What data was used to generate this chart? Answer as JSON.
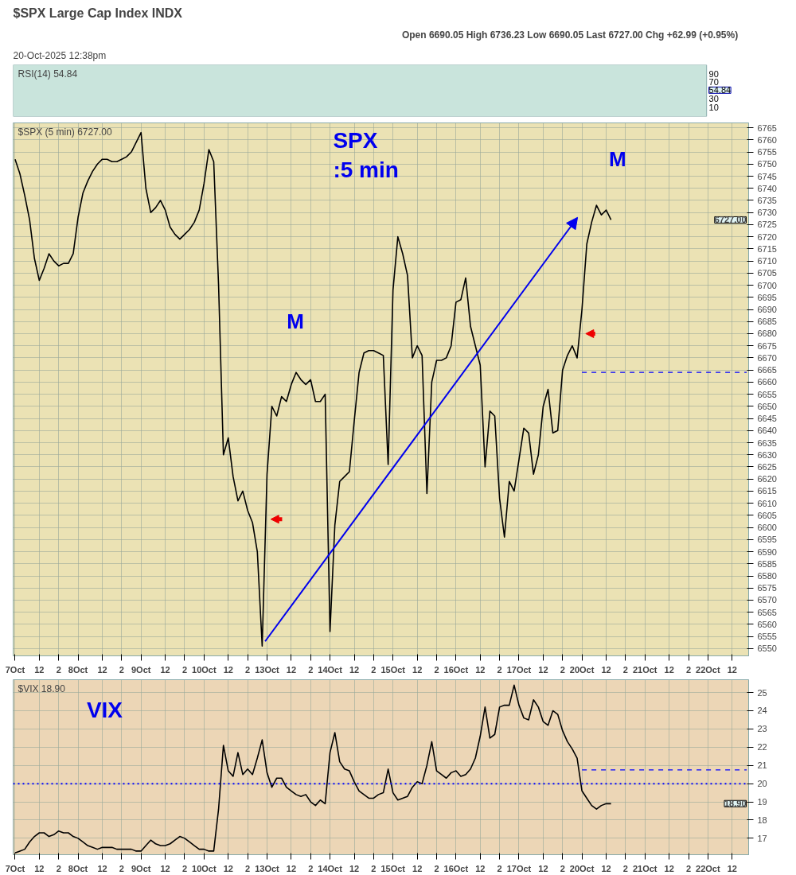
{
  "chart_data": [
    {
      "type": "other",
      "title": "$SPX Large Cap Index INDX",
      "subtitle": "20-Oct-2025 12:38pm",
      "annotations": [
        "Open 6690.05  High 6736.23  Low 6690.05  Last 6727.00  Chg +62.99 (+0.95%)",
        "RSI(14) 54.84",
        "90",
        "70",
        "54.84",
        "30",
        "10"
      ]
    },
    {
      "type": "line",
      "annotations": [
        "$SPX (5 min) 6727.00",
        "SPX",
        ":5 min",
        "M",
        "M",
        "6727.00"
      ],
      "ylim": [
        6547,
        6767
      ],
      "grid": true,
      "yticks": [
        6550,
        6555,
        6560,
        6565,
        6570,
        6575,
        6580,
        6585,
        6590,
        6595,
        6600,
        6605,
        6610,
        6615,
        6620,
        6625,
        6630,
        6635,
        6640,
        6645,
        6650,
        6655,
        6660,
        6665,
        6670,
        6675,
        6680,
        6685,
        6690,
        6695,
        6700,
        6705,
        6710,
        6715,
        6720,
        6725,
        6730,
        6735,
        6740,
        6745,
        6750,
        6755,
        6760,
        6765
      ],
      "categories": [
        "7Oct",
        null,
        null,
        null,
        null,
        "12",
        null,
        null,
        null,
        "2",
        null,
        null,
        null,
        "8Oct",
        null,
        null,
        null,
        null,
        "12",
        null,
        null,
        null,
        "2",
        null,
        null,
        null,
        "9Oct",
        null,
        null,
        null,
        null,
        "12",
        null,
        null,
        null,
        "2",
        null,
        null,
        null,
        "10Oct",
        null,
        null,
        null,
        null,
        "12",
        null,
        null,
        null,
        "2",
        null,
        null,
        null,
        "13Oct",
        null,
        null,
        null,
        null,
        "12",
        null,
        null,
        null,
        "2",
        null,
        null,
        null,
        "14Oct",
        null,
        null,
        null,
        null,
        "12",
        null,
        null,
        null,
        "2",
        null,
        null,
        null,
        "15Oct",
        null,
        null,
        null,
        null,
        "12",
        null,
        null,
        null,
        "2",
        null,
        null,
        null,
        "16Oct",
        null,
        null,
        null,
        null,
        "12",
        null,
        null,
        null,
        "2",
        null,
        null,
        null,
        "17Oct",
        null,
        null,
        null,
        null,
        "12",
        null,
        null,
        null,
        "2",
        null,
        null,
        null,
        "20Oct",
        null,
        null,
        null,
        null,
        "12",
        null,
        null,
        null,
        "2",
        null,
        null,
        null,
        "21Oct",
        null,
        null,
        null,
        null,
        "12",
        null,
        null,
        null,
        "2",
        null,
        null,
        null,
        "22Oct",
        null,
        null,
        null,
        null,
        "12",
        null,
        null,
        null
      ],
      "series": [
        {
          "color": "#000000",
          "values": [
            6752,
            6746,
            6737,
            6727,
            6711,
            6702,
            6707,
            6713,
            6710,
            6708,
            6709,
            6709,
            6713,
            6728,
            6738,
            6743,
            6747,
            6750,
            6752,
            6752,
            6751,
            6751,
            6752,
            6753,
            6755,
            6759,
            6763,
            6740,
            6730,
            6732,
            6735,
            6731,
            6724,
            6721,
            6719,
            6721,
            6723,
            6726,
            6731,
            6742,
            6756,
            6751,
            6700,
            6630,
            6637,
            6621,
            6611,
            6615,
            6607,
            6602,
            6590,
            6551,
            6622,
            6650,
            6646,
            6654,
            6652,
            6659,
            6664,
            6661,
            6659,
            6661,
            6652,
            6652,
            6655,
            6557,
            6601,
            6619,
            6621,
            6623,
            6644,
            6664,
            6672,
            6673,
            6673,
            6672,
            6671,
            6626,
            6698,
            6720,
            6713,
            6704,
            6670,
            6675,
            6671,
            6614,
            6660,
            6669,
            6669,
            6670,
            6675,
            6693,
            6694,
            6703,
            6683,
            6675,
            6667,
            6625,
            6648,
            6646,
            6612,
            6596,
            6619,
            6615,
            6628,
            6641,
            6639,
            6622,
            6630,
            6650,
            6657,
            6639,
            6640,
            6665,
            6671,
            6675,
            6670,
            6690,
            6717,
            6726,
            6733,
            6729,
            6731,
            6727,
            null,
            null,
            null,
            null,
            null,
            null,
            null,
            null,
            null,
            null,
            null,
            null,
            null,
            null,
            null,
            null,
            null,
            null,
            null,
            null,
            null,
            null,
            null,
            null,
            null,
            null,
            null,
            null
          ]
        },
        {
          "color": "#0000ff",
          "line_style": "dashed",
          "values": [
            null,
            null,
            null,
            null,
            null,
            null,
            null,
            null,
            null,
            null,
            null,
            null,
            null,
            null,
            null,
            null,
            null,
            null,
            null,
            null,
            null,
            null,
            null,
            null,
            null,
            null,
            null,
            null,
            null,
            null,
            null,
            null,
            null,
            null,
            null,
            null,
            null,
            null,
            null,
            null,
            null,
            null,
            null,
            null,
            null,
            null,
            null,
            null,
            null,
            null,
            null,
            null,
            null,
            null,
            null,
            null,
            null,
            null,
            null,
            null,
            null,
            null,
            null,
            null,
            null,
            null,
            null,
            null,
            null,
            null,
            null,
            null,
            null,
            null,
            null,
            null,
            null,
            null,
            null,
            null,
            null,
            null,
            null,
            null,
            null,
            null,
            null,
            null,
            null,
            null,
            null,
            null,
            null,
            null,
            null,
            null,
            null,
            null,
            null,
            null,
            null,
            null,
            null,
            null,
            null,
            null,
            null,
            null,
            null,
            null,
            null,
            null,
            null,
            null,
            null,
            null,
            null,
            6664,
            6664,
            6664,
            6664,
            6664,
            6664,
            6664,
            6664,
            6664,
            6664,
            6664,
            6664,
            6664,
            6664,
            6664,
            6664,
            6664,
            6664,
            6664,
            6664,
            6664,
            6664,
            6664,
            6664,
            6664,
            6664,
            6664,
            6664,
            6664,
            6664,
            6664,
            6664,
            6664,
            6664,
            6664
          ]
        }
      ]
    },
    {
      "type": "line",
      "annotations": [
        "$VIX 18.90",
        "VIX",
        "18.90"
      ],
      "ylim": [
        16.1,
        25.7
      ],
      "yticks": [
        17,
        18,
        19,
        20,
        21,
        22,
        23,
        24,
        25
      ],
      "grid": true,
      "ref_lines": [
        {
          "axis": "y",
          "value": 20,
          "color": "#0000ff",
          "line_style": "dotted"
        }
      ],
      "categories": [
        "7Oct",
        null,
        null,
        null,
        null,
        "12",
        null,
        null,
        null,
        "2",
        null,
        null,
        null,
        "8Oct",
        null,
        null,
        null,
        null,
        "12",
        null,
        null,
        null,
        "2",
        null,
        null,
        null,
        "9Oct",
        null,
        null,
        null,
        null,
        "12",
        null,
        null,
        null,
        "2",
        null,
        null,
        null,
        "10Oct",
        null,
        null,
        null,
        null,
        "12",
        null,
        null,
        null,
        "2",
        null,
        null,
        null,
        "13Oct",
        null,
        null,
        null,
        null,
        "12",
        null,
        null,
        null,
        "2",
        null,
        null,
        null,
        "14Oct",
        null,
        null,
        null,
        null,
        "12",
        null,
        null,
        null,
        "2",
        null,
        null,
        null,
        "15Oct",
        null,
        null,
        null,
        null,
        "12",
        null,
        null,
        null,
        "2",
        null,
        null,
        null,
        "16Oct",
        null,
        null,
        null,
        null,
        "12",
        null,
        null,
        null,
        "2",
        null,
        null,
        null,
        "17Oct",
        null,
        null,
        null,
        null,
        "12",
        null,
        null,
        null,
        "2",
        null,
        null,
        null,
        "20Oct",
        null,
        null,
        null,
        null,
        "12",
        null,
        null,
        null,
        "2",
        null,
        null,
        null,
        "21Oct",
        null,
        null,
        null,
        null,
        "12",
        null,
        null,
        null,
        "2",
        null,
        null,
        null,
        "22Oct",
        null,
        null,
        null,
        null,
        "12",
        null,
        null,
        null
      ],
      "series": [
        {
          "color": "#000000",
          "values": [
            16.2,
            16.3,
            16.4,
            16.8,
            17.1,
            17.3,
            17.3,
            17.1,
            17.2,
            17.4,
            17.3,
            17.3,
            17.1,
            17.0,
            16.8,
            16.6,
            16.5,
            16.4,
            16.5,
            16.5,
            16.5,
            16.4,
            16.4,
            16.4,
            16.4,
            16.3,
            16.3,
            16.6,
            16.9,
            16.7,
            16.6,
            16.6,
            16.7,
            16.9,
            17.1,
            17.0,
            16.8,
            16.6,
            16.4,
            16.4,
            16.3,
            16.3,
            18.6,
            22.1,
            20.7,
            20.4,
            21.7,
            20.5,
            20.8,
            20.5,
            21.4,
            22.4,
            20.6,
            19.8,
            20.3,
            20.3,
            19.8,
            19.6,
            19.4,
            19.3,
            19.4,
            19.0,
            18.8,
            19.1,
            18.9,
            21.7,
            22.8,
            21.2,
            20.8,
            20.7,
            20.1,
            19.6,
            19.4,
            19.2,
            19.2,
            19.4,
            19.5,
            20.8,
            19.5,
            19.1,
            19.2,
            19.3,
            19.8,
            20.1,
            20.0,
            21.0,
            22.3,
            20.7,
            20.5,
            20.3,
            20.6,
            20.7,
            20.4,
            20.5,
            20.8,
            21.4,
            22.6,
            24.2,
            22.5,
            22.7,
            24.2,
            24.3,
            24.3,
            25.4,
            24.3,
            23.6,
            23.5,
            24.6,
            24.2,
            23.4,
            23.2,
            24.0,
            23.8,
            22.9,
            22.3,
            21.9,
            21.4,
            19.6,
            19.2,
            18.8,
            18.6,
            18.8,
            18.9,
            18.9,
            null,
            null,
            null,
            null,
            null,
            null,
            null,
            null,
            null,
            null,
            null,
            null,
            null,
            null,
            null,
            null,
            null,
            null,
            null,
            null,
            null,
            null,
            null,
            null,
            null,
            null,
            null,
            null
          ]
        },
        {
          "color": "#0000ff",
          "line_style": "dashed",
          "values": [
            null,
            null,
            null,
            null,
            null,
            null,
            null,
            null,
            null,
            null,
            null,
            null,
            null,
            null,
            null,
            null,
            null,
            null,
            null,
            null,
            null,
            null,
            null,
            null,
            null,
            null,
            null,
            null,
            null,
            null,
            null,
            null,
            null,
            null,
            null,
            null,
            null,
            null,
            null,
            null,
            null,
            null,
            null,
            null,
            null,
            null,
            null,
            null,
            null,
            null,
            null,
            null,
            null,
            null,
            null,
            null,
            null,
            null,
            null,
            null,
            null,
            null,
            null,
            null,
            null,
            null,
            null,
            null,
            null,
            null,
            null,
            null,
            null,
            null,
            null,
            null,
            null,
            null,
            null,
            null,
            null,
            null,
            null,
            null,
            null,
            null,
            null,
            null,
            null,
            null,
            null,
            null,
            null,
            null,
            null,
            null,
            null,
            null,
            null,
            null,
            null,
            null,
            null,
            null,
            null,
            null,
            null,
            null,
            null,
            null,
            null,
            null,
            null,
            null,
            null,
            null,
            null,
            20.75,
            20.75,
            20.75,
            20.75,
            20.75,
            20.75,
            20.75,
            20.75,
            20.75,
            20.75,
            20.75,
            20.75,
            20.75,
            20.75,
            20.75,
            20.75,
            20.75,
            20.75,
            20.75,
            20.75,
            20.75,
            20.75,
            20.75,
            20.75,
            20.75,
            20.75,
            20.75,
            20.75,
            20.75,
            20.75,
            20.75,
            20.75,
            20.75,
            20.75,
            20.75
          ]
        }
      ]
    }
  ]
}
